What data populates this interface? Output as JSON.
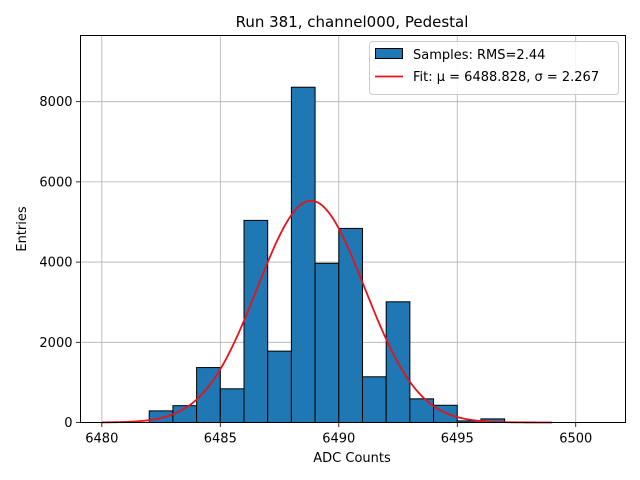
{
  "chart_data": {
    "type": "bar",
    "title": "Run 381, channel000, Pedestal",
    "xlabel": "ADC Counts",
    "ylabel": "Entries",
    "xlim": [
      6479.1,
      6502.1
    ],
    "ylim": [
      0,
      9650
    ],
    "xticks": [
      6480,
      6485,
      6490,
      6495,
      6500
    ],
    "yticks": [
      0,
      2000,
      4000,
      6000,
      8000
    ],
    "grid": true,
    "legend_position": "top-right",
    "bar_color": "#1f77b4",
    "bar_edge_color": "#000000",
    "fit_color": "#e8121a",
    "bins": [
      {
        "x0": 6482,
        "x1": 6483,
        "count": 290
      },
      {
        "x0": 6483,
        "x1": 6484,
        "count": 420
      },
      {
        "x0": 6484,
        "x1": 6485,
        "count": 1370
      },
      {
        "x0": 6485,
        "x1": 6486,
        "count": 840
      },
      {
        "x0": 6486,
        "x1": 6487,
        "count": 5040
      },
      {
        "x0": 6487,
        "x1": 6488,
        "count": 1780
      },
      {
        "x0": 6488,
        "x1": 6489,
        "count": 8360
      },
      {
        "x0": 6489,
        "x1": 6490,
        "count": 3970
      },
      {
        "x0": 6490,
        "x1": 6491,
        "count": 4840
      },
      {
        "x0": 6491,
        "x1": 6492,
        "count": 1140
      },
      {
        "x0": 6492,
        "x1": 6493,
        "count": 3010
      },
      {
        "x0": 6493,
        "x1": 6494,
        "count": 590
      },
      {
        "x0": 6494,
        "x1": 6495,
        "count": 430
      },
      {
        "x0": 6495,
        "x1": 6496,
        "count": 40
      },
      {
        "x0": 6496,
        "x1": 6497,
        "count": 90
      }
    ],
    "fit": {
      "mu": 6488.828,
      "sigma": 2.267,
      "amplitude": 5530,
      "x_range": [
        6480,
        6499
      ]
    },
    "legend": [
      {
        "type": "bar",
        "label": "Samples: RMS=2.44"
      },
      {
        "type": "line",
        "label": "Fit: μ = 6488.828, σ = 2.267"
      }
    ]
  }
}
